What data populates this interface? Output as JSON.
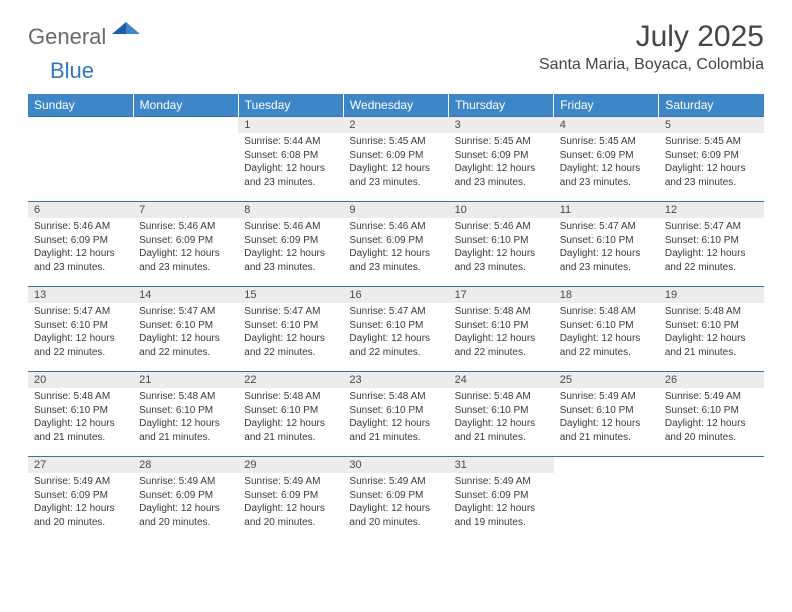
{
  "brand": {
    "part1": "General",
    "part2": "Blue"
  },
  "title": "July 2025",
  "location": "Santa Maria, Boyaca, Colombia",
  "colors": {
    "header_bg": "#3d87c9",
    "header_text": "#ffffff",
    "daynum_bg": "#ececec",
    "row_border": "#3d6fa5",
    "logo_gray": "#6a6a6a",
    "logo_blue": "#2f78c2",
    "body_text": "#3a3a3a",
    "title_text": "#454545"
  },
  "weekdays": [
    "Sunday",
    "Monday",
    "Tuesday",
    "Wednesday",
    "Thursday",
    "Friday",
    "Saturday"
  ],
  "layout": {
    "first_weekday_index": 2,
    "days_in_month": 31
  },
  "days": {
    "1": {
      "sunrise": "5:44 AM",
      "sunset": "6:08 PM",
      "daylight": "12 hours and 23 minutes."
    },
    "2": {
      "sunrise": "5:45 AM",
      "sunset": "6:09 PM",
      "daylight": "12 hours and 23 minutes."
    },
    "3": {
      "sunrise": "5:45 AM",
      "sunset": "6:09 PM",
      "daylight": "12 hours and 23 minutes."
    },
    "4": {
      "sunrise": "5:45 AM",
      "sunset": "6:09 PM",
      "daylight": "12 hours and 23 minutes."
    },
    "5": {
      "sunrise": "5:45 AM",
      "sunset": "6:09 PM",
      "daylight": "12 hours and 23 minutes."
    },
    "6": {
      "sunrise": "5:46 AM",
      "sunset": "6:09 PM",
      "daylight": "12 hours and 23 minutes."
    },
    "7": {
      "sunrise": "5:46 AM",
      "sunset": "6:09 PM",
      "daylight": "12 hours and 23 minutes."
    },
    "8": {
      "sunrise": "5:46 AM",
      "sunset": "6:09 PM",
      "daylight": "12 hours and 23 minutes."
    },
    "9": {
      "sunrise": "5:46 AM",
      "sunset": "6:09 PM",
      "daylight": "12 hours and 23 minutes."
    },
    "10": {
      "sunrise": "5:46 AM",
      "sunset": "6:10 PM",
      "daylight": "12 hours and 23 minutes."
    },
    "11": {
      "sunrise": "5:47 AM",
      "sunset": "6:10 PM",
      "daylight": "12 hours and 23 minutes."
    },
    "12": {
      "sunrise": "5:47 AM",
      "sunset": "6:10 PM",
      "daylight": "12 hours and 22 minutes."
    },
    "13": {
      "sunrise": "5:47 AM",
      "sunset": "6:10 PM",
      "daylight": "12 hours and 22 minutes."
    },
    "14": {
      "sunrise": "5:47 AM",
      "sunset": "6:10 PM",
      "daylight": "12 hours and 22 minutes."
    },
    "15": {
      "sunrise": "5:47 AM",
      "sunset": "6:10 PM",
      "daylight": "12 hours and 22 minutes."
    },
    "16": {
      "sunrise": "5:47 AM",
      "sunset": "6:10 PM",
      "daylight": "12 hours and 22 minutes."
    },
    "17": {
      "sunrise": "5:48 AM",
      "sunset": "6:10 PM",
      "daylight": "12 hours and 22 minutes."
    },
    "18": {
      "sunrise": "5:48 AM",
      "sunset": "6:10 PM",
      "daylight": "12 hours and 22 minutes."
    },
    "19": {
      "sunrise": "5:48 AM",
      "sunset": "6:10 PM",
      "daylight": "12 hours and 21 minutes."
    },
    "20": {
      "sunrise": "5:48 AM",
      "sunset": "6:10 PM",
      "daylight": "12 hours and 21 minutes."
    },
    "21": {
      "sunrise": "5:48 AM",
      "sunset": "6:10 PM",
      "daylight": "12 hours and 21 minutes."
    },
    "22": {
      "sunrise": "5:48 AM",
      "sunset": "6:10 PM",
      "daylight": "12 hours and 21 minutes."
    },
    "23": {
      "sunrise": "5:48 AM",
      "sunset": "6:10 PM",
      "daylight": "12 hours and 21 minutes."
    },
    "24": {
      "sunrise": "5:48 AM",
      "sunset": "6:10 PM",
      "daylight": "12 hours and 21 minutes."
    },
    "25": {
      "sunrise": "5:49 AM",
      "sunset": "6:10 PM",
      "daylight": "12 hours and 21 minutes."
    },
    "26": {
      "sunrise": "5:49 AM",
      "sunset": "6:10 PM",
      "daylight": "12 hours and 20 minutes."
    },
    "27": {
      "sunrise": "5:49 AM",
      "sunset": "6:09 PM",
      "daylight": "12 hours and 20 minutes."
    },
    "28": {
      "sunrise": "5:49 AM",
      "sunset": "6:09 PM",
      "daylight": "12 hours and 20 minutes."
    },
    "29": {
      "sunrise": "5:49 AM",
      "sunset": "6:09 PM",
      "daylight": "12 hours and 20 minutes."
    },
    "30": {
      "sunrise": "5:49 AM",
      "sunset": "6:09 PM",
      "daylight": "12 hours and 20 minutes."
    },
    "31": {
      "sunrise": "5:49 AM",
      "sunset": "6:09 PM",
      "daylight": "12 hours and 19 minutes."
    }
  },
  "labels": {
    "sunrise": "Sunrise:",
    "sunset": "Sunset:",
    "daylight": "Daylight:"
  }
}
